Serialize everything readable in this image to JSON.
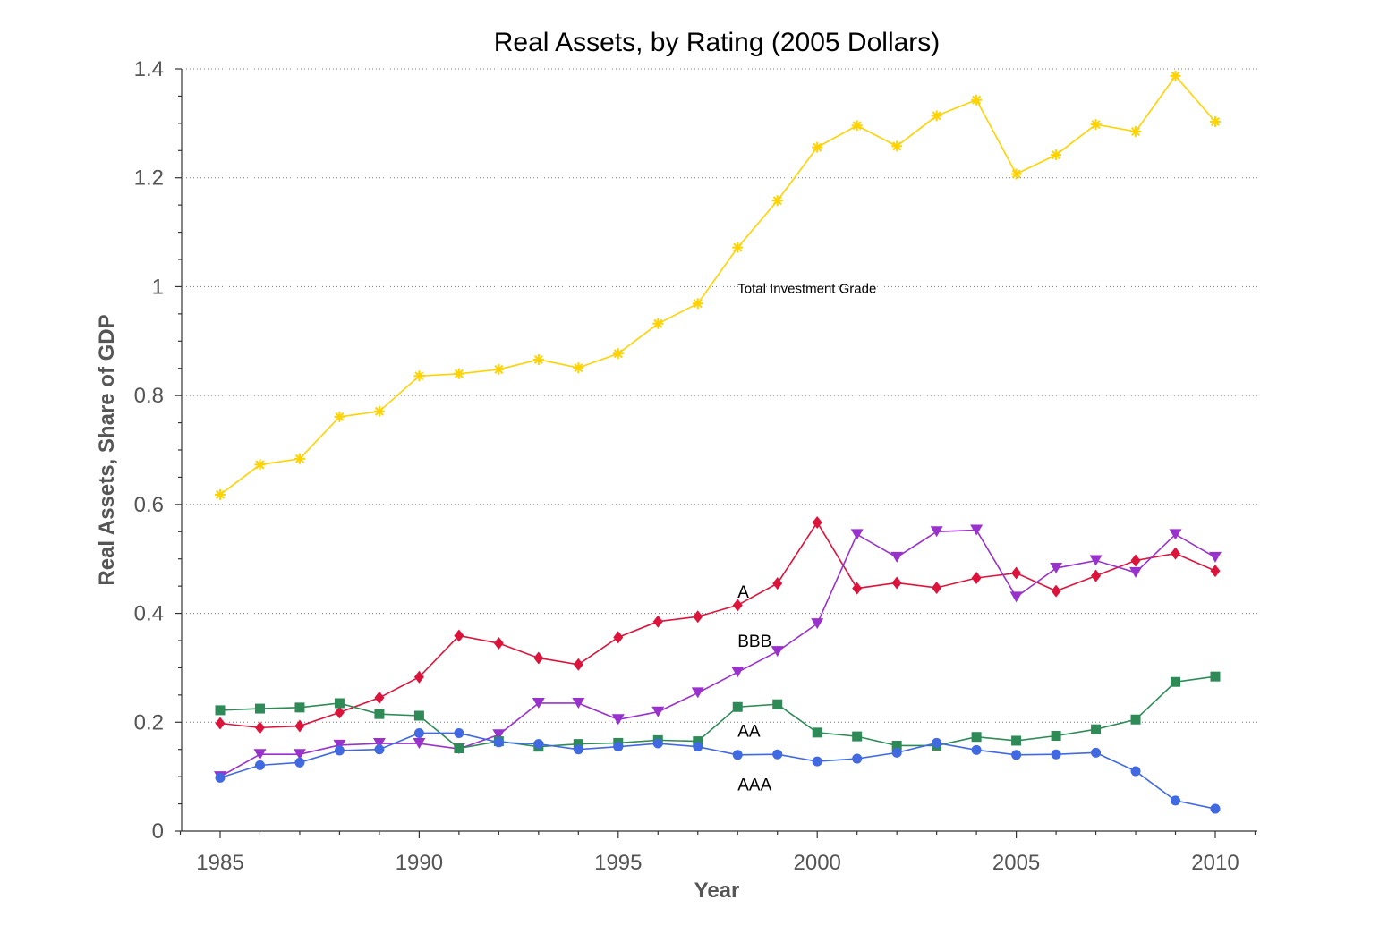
{
  "chart_data": {
    "type": "line",
    "title": "Real Assets, by Rating (2005 Dollars)",
    "xlabel": "Year",
    "ylabel": "Real Assets, Share of GDP",
    "xlim": [
      1984,
      2011
    ],
    "ylim": [
      0,
      1.4
    ],
    "grid": "horizontal dotted",
    "x": [
      1985,
      1986,
      1987,
      1988,
      1989,
      1990,
      1991,
      1992,
      1993,
      1994,
      1995,
      1996,
      1997,
      1998,
      1999,
      2000,
      2001,
      2002,
      2003,
      2004,
      2005,
      2006,
      2007,
      2008,
      2009,
      2010
    ],
    "xticks": [
      1985,
      1990,
      1995,
      2000,
      2005,
      2010
    ],
    "xtick_labels": [
      "1985",
      "1990",
      "1995",
      "2000",
      "2005",
      "2010"
    ],
    "yticks": [
      0,
      0.2,
      0.4,
      0.6,
      0.8,
      1,
      1.2,
      1.4
    ],
    "ytick_labels": [
      "0",
      "0.2",
      "0.4",
      "0.6",
      "0.8",
      "1",
      "1.2",
      "1.4"
    ],
    "series": [
      {
        "name": "Total Investment Grade",
        "color": "#FFD200",
        "marker": "asterisk",
        "values": [
          0.618,
          0.673,
          0.684,
          0.761,
          0.771,
          0.836,
          0.84,
          0.848,
          0.866,
          0.851,
          0.877,
          0.932,
          0.969,
          1.072,
          1.158,
          1.256,
          1.296,
          1.258,
          1.314,
          1.343,
          1.207,
          1.242,
          1.298,
          1.285,
          1.387,
          1.303
        ]
      },
      {
        "name": "A",
        "color": "#DC143C",
        "marker": "diamond",
        "values": [
          0.198,
          0.19,
          0.193,
          0.218,
          0.245,
          0.283,
          0.359,
          0.345,
          0.318,
          0.306,
          0.356,
          0.385,
          0.394,
          0.415,
          0.455,
          0.567,
          0.446,
          0.456,
          0.447,
          0.465,
          0.474,
          0.441,
          0.469,
          0.497,
          0.51,
          0.478
        ]
      },
      {
        "name": "BBB",
        "color": "#9932CC",
        "marker": "triangle-down",
        "values": [
          0.1,
          0.141,
          0.141,
          0.158,
          0.161,
          0.161,
          0.151,
          0.177,
          0.235,
          0.235,
          0.205,
          0.219,
          0.254,
          0.292,
          0.33,
          0.381,
          0.545,
          0.503,
          0.55,
          0.553,
          0.43,
          0.483,
          0.497,
          0.475,
          0.545,
          0.503
        ]
      },
      {
        "name": "AA",
        "color": "#2E8B57",
        "marker": "square",
        "values": [
          0.222,
          0.225,
          0.227,
          0.235,
          0.215,
          0.212,
          0.152,
          0.165,
          0.155,
          0.16,
          0.162,
          0.167,
          0.165,
          0.228,
          0.233,
          0.181,
          0.174,
          0.157,
          0.157,
          0.173,
          0.166,
          0.175,
          0.187,
          0.205,
          0.274,
          0.284
        ]
      },
      {
        "name": "AAA",
        "color": "#4169E1",
        "marker": "circle",
        "values": [
          0.098,
          0.121,
          0.126,
          0.148,
          0.15,
          0.18,
          0.18,
          0.163,
          0.16,
          0.15,
          0.155,
          0.161,
          0.155,
          0.14,
          0.141,
          0.128,
          0.133,
          0.144,
          0.162,
          0.149,
          0.14,
          0.141,
          0.144,
          0.11,
          0.056,
          0.041
        ]
      }
    ],
    "annotations": [
      {
        "text": "Total Investment Grade",
        "x": 1998,
        "y": 1.0,
        "size": "small"
      },
      {
        "text": "A",
        "x": 1998,
        "y": 0.44,
        "size": "normal"
      },
      {
        "text": "BBB",
        "x": 1998,
        "y": 0.35,
        "size": "normal"
      },
      {
        "text": "AA",
        "x": 1998,
        "y": 0.185,
        "size": "normal"
      },
      {
        "text": "AAA",
        "x": 1998,
        "y": 0.086,
        "size": "normal"
      }
    ]
  }
}
